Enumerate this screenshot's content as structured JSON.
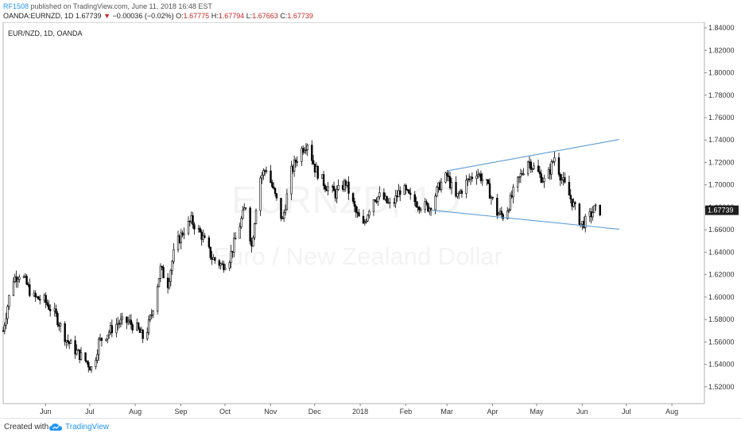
{
  "header": {
    "publisher": "RF1508",
    "published_text": "published on TradingView.com, June 11, 2018 16:48 EST"
  },
  "quote": {
    "symbol_label": "OANDA:EURNZD, 1D",
    "last": "1.67739",
    "change_arrow": "▼",
    "change": "−0.00036 (−0.02%)",
    "o_label": "O:",
    "o_value": "1.67775",
    "h_label": "H:",
    "h_value": "1.67794",
    "l_label": "L:",
    "l_value": "1.67663",
    "c_label": "C:",
    "c_value": "1.67739"
  },
  "footer": {
    "created_with": "Created with",
    "brand": "TradingView",
    "logo_icon": "tradingview-cloud-icon"
  },
  "colors": {
    "candle": "#000000",
    "trendline": "#5b9bd5",
    "price_tag_bg": "#1e1e1e",
    "watermark": "#f3f3f3",
    "down": "#c62828",
    "brand": "#2196f3"
  },
  "chart_data": {
    "type": "candlestick",
    "title": "EUR/NZD, 1D, OANDA",
    "watermark_symbol": "EURNZD, 1D",
    "watermark_name": "Euro / New Zealand Dollar",
    "ylim": [
      1.505,
      1.845
    ],
    "y_ticks": [
      "1.84000",
      "1.82000",
      "1.80000",
      "1.78000",
      "1.76000",
      "1.74000",
      "1.72000",
      "1.70000",
      "1.68000",
      "1.66000",
      "1.64000",
      "1.62000",
      "1.60000",
      "1.58000",
      "1.56000",
      "1.54000",
      "1.52000"
    ],
    "x_ticks": [
      {
        "label": "Jun",
        "date": "2017-06-01"
      },
      {
        "label": "Jul",
        "date": "2017-07-01"
      },
      {
        "label": "Aug",
        "date": "2017-08-01"
      },
      {
        "label": "Sep",
        "date": "2017-09-01"
      },
      {
        "label": "Oct",
        "date": "2017-10-01"
      },
      {
        "label": "Nov",
        "date": "2017-11-01"
      },
      {
        "label": "Dec",
        "date": "2017-12-01"
      },
      {
        "label": "2018",
        "date": "2018-01-01"
      },
      {
        "label": "Feb",
        "date": "2018-02-01"
      },
      {
        "label": "Mar",
        "date": "2018-03-01"
      },
      {
        "label": "Apr",
        "date": "2018-04-01"
      },
      {
        "label": "May",
        "date": "2018-05-01"
      },
      {
        "label": "Jun",
        "date": "2018-06-01"
      },
      {
        "label": "Jul",
        "date": "2018-07-01"
      },
      {
        "label": "Aug",
        "date": "2018-08-01"
      }
    ],
    "x_range": [
      "2017-05-08",
      "2018-08-28"
    ],
    "last_price_label": "1.67739",
    "last_price": 1.67739,
    "price_path": [
      [
        "2017-05-08",
        1.57
      ],
      [
        "2017-05-14",
        1.615
      ],
      [
        "2017-05-20",
        1.622
      ],
      [
        "2017-05-28",
        1.6
      ],
      [
        "2017-06-05",
        1.597
      ],
      [
        "2017-06-13",
        1.583
      ],
      [
        "2017-06-20",
        1.562
      ],
      [
        "2017-06-27",
        1.551
      ],
      [
        "2017-07-04",
        1.542
      ],
      [
        "2017-07-08",
        1.535
      ],
      [
        "2017-07-12",
        1.56
      ],
      [
        "2017-07-18",
        1.568
      ],
      [
        "2017-07-25",
        1.577
      ],
      [
        "2017-08-01",
        1.578
      ],
      [
        "2017-08-07",
        1.572
      ],
      [
        "2017-08-12",
        1.562
      ],
      [
        "2017-08-17",
        1.585
      ],
      [
        "2017-08-23",
        1.625
      ],
      [
        "2017-08-28",
        1.612
      ],
      [
        "2017-09-02",
        1.645
      ],
      [
        "2017-09-08",
        1.66
      ],
      [
        "2017-09-13",
        1.668
      ],
      [
        "2017-09-20",
        1.655
      ],
      [
        "2017-09-27",
        1.635
      ],
      [
        "2017-10-04",
        1.628
      ],
      [
        "2017-10-09",
        1.635
      ],
      [
        "2017-10-15",
        1.66
      ],
      [
        "2017-10-20",
        1.682
      ],
      [
        "2017-10-24",
        1.645
      ],
      [
        "2017-10-29",
        1.705
      ],
      [
        "2017-11-03",
        1.715
      ],
      [
        "2017-11-09",
        1.69
      ],
      [
        "2017-11-14",
        1.668
      ],
      [
        "2017-11-20",
        1.712
      ],
      [
        "2017-11-26",
        1.73
      ],
      [
        "2017-12-01",
        1.738
      ],
      [
        "2017-12-06",
        1.715
      ],
      [
        "2017-12-13",
        1.7
      ],
      [
        "2017-12-20",
        1.692
      ],
      [
        "2017-12-27",
        1.702
      ],
      [
        "2018-01-03",
        1.675
      ],
      [
        "2018-01-08",
        1.663
      ],
      [
        "2018-01-14",
        1.688
      ],
      [
        "2018-01-20",
        1.69
      ],
      [
        "2018-01-27",
        1.68
      ],
      [
        "2018-02-03",
        1.698
      ],
      [
        "2018-02-09",
        1.688
      ],
      [
        "2018-02-16",
        1.682
      ],
      [
        "2018-02-22",
        1.68
      ],
      [
        "2018-03-01",
        1.7
      ],
      [
        "2018-03-06",
        1.708
      ],
      [
        "2018-03-12",
        1.688
      ],
      [
        "2018-03-19",
        1.702
      ],
      [
        "2018-03-26",
        1.712
      ],
      [
        "2018-04-02",
        1.7
      ],
      [
        "2018-04-09",
        1.675
      ],
      [
        "2018-04-14",
        1.672
      ],
      [
        "2018-04-22",
        1.7
      ],
      [
        "2018-04-30",
        1.722
      ],
      [
        "2018-05-06",
        1.712
      ],
      [
        "2018-05-12",
        1.702
      ],
      [
        "2018-05-18",
        1.725
      ],
      [
        "2018-05-23",
        1.705
      ],
      [
        "2018-05-30",
        1.685
      ],
      [
        "2018-06-05",
        1.665
      ],
      [
        "2018-06-09",
        1.668
      ],
      [
        "2018-06-14",
        1.678
      ],
      [
        "2018-06-18",
        1.677
      ]
    ],
    "trendlines": [
      {
        "from": {
          "date": "2018-03-06",
          "price": 1.7125
        },
        "to": {
          "date": "2018-07-01",
          "price": 1.7405
        }
      },
      {
        "from": {
          "date": "2018-02-23",
          "price": 1.6775
        },
        "to": {
          "date": "2018-07-01",
          "price": 1.6605
        }
      }
    ]
  }
}
